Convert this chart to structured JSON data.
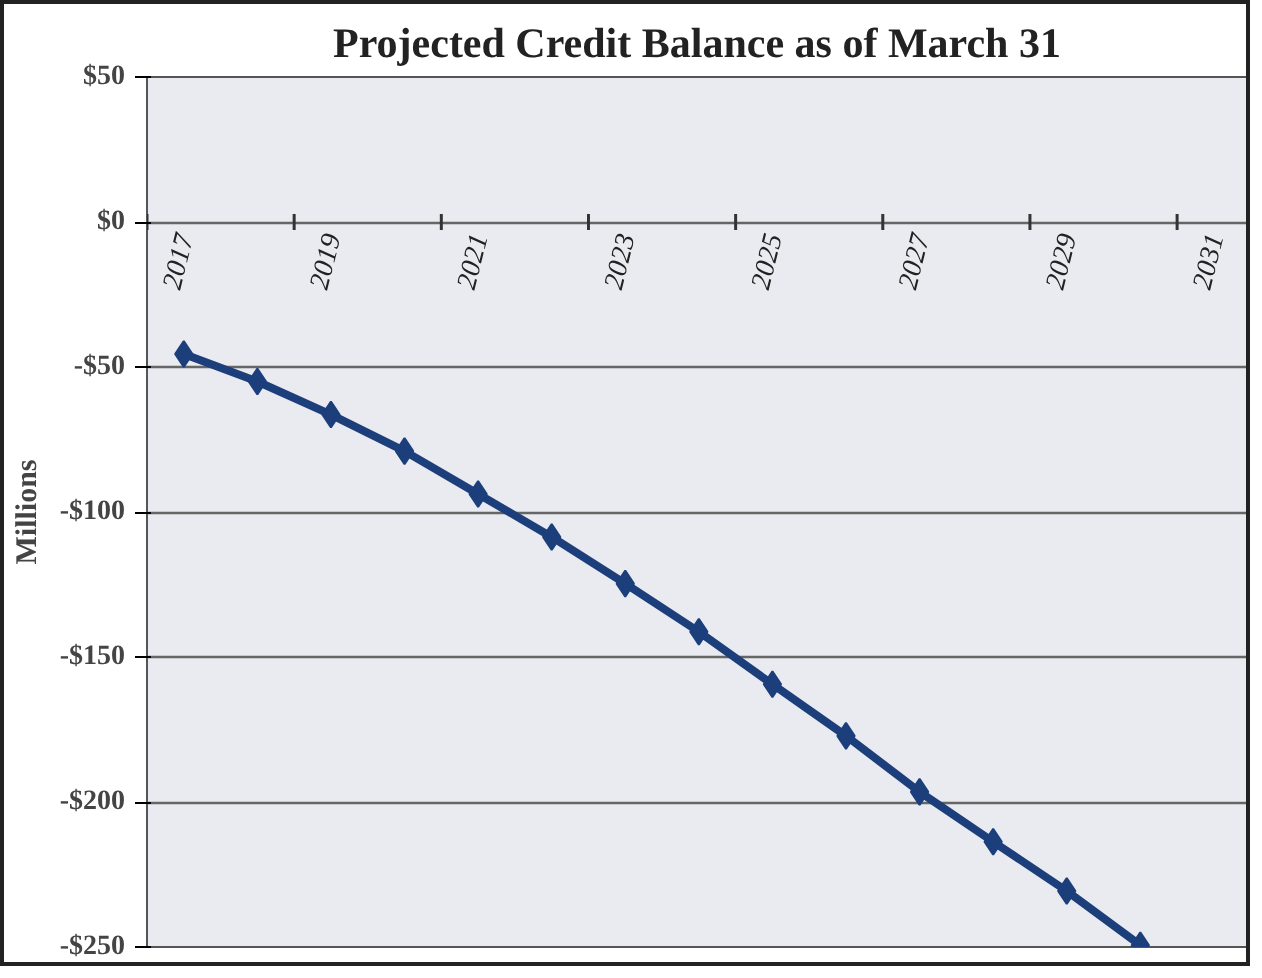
{
  "chart_data": {
    "type": "line",
    "title": "Projected Credit Balance as of March 31",
    "ylabel": "Millions",
    "categories": [
      "2017",
      null,
      "2019",
      null,
      "2021",
      null,
      "2023",
      null,
      "2025",
      null,
      "2027",
      null,
      "2029",
      null,
      "2031"
    ],
    "series": [
      {
        "color": "#1c3f7c",
        "values": [
          -45.5,
          -55,
          -66.4,
          -79,
          -93.8,
          -108.6,
          -124.7,
          -141.3,
          -159.4,
          -177.2,
          -196.5,
          -213.7,
          -230.7,
          -249.4,
          null
        ]
      }
    ],
    "ylim": [
      -250,
      50
    ],
    "yticks": [
      {
        "value": 50,
        "label": "$50"
      },
      {
        "value": 0,
        "label": "$0"
      },
      {
        "value": -50,
        "label": "-$50"
      },
      {
        "value": -100,
        "label": "-$100"
      },
      {
        "value": -150,
        "label": "-$150"
      },
      {
        "value": -200,
        "label": "-$200"
      },
      {
        "value": -250,
        "label": "-$250"
      }
    ],
    "grid": "y",
    "marker": "diamond",
    "line_style": "solid"
  }
}
